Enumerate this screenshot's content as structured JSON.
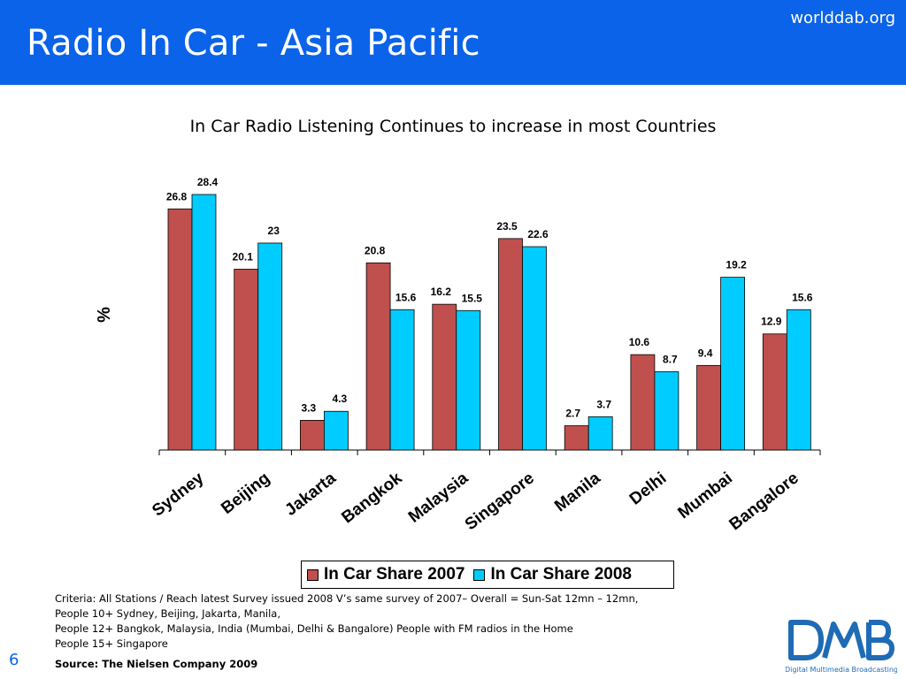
{
  "header": {
    "title": "Radio In Car - Asia Pacific",
    "site": "worlddab.org"
  },
  "colors": {
    "header_bg": "#0a63e8",
    "series_2007": "#c0504d",
    "series_2008": "#00ccff"
  },
  "chart_data": {
    "type": "bar",
    "title": "In Car Radio Listening Continues to increase in most Countries",
    "ylabel": "%",
    "xlabel": "",
    "ylim": [
      0,
      28.4
    ],
    "grid": false,
    "legend_position": "bottom",
    "categories": [
      "Sydney",
      "Beijing",
      "Jakarta",
      "Bangkok",
      "Malaysia",
      "Singapore",
      "Manila",
      "Delhi",
      "Mumbai",
      "Bangalore"
    ],
    "series": [
      {
        "name": "In Car Share 2007",
        "color": "#c0504d",
        "values": [
          26.8,
          20.1,
          3.3,
          20.8,
          16.2,
          23.5,
          2.7,
          10.6,
          9.4,
          12.9
        ],
        "labels": [
          "26.8",
          "20.1",
          "3.3",
          "20.8",
          "16.2",
          "23.5",
          "2.7",
          "10.6",
          "9.4",
          "12.9"
        ]
      },
      {
        "name": "In Car Share 2008",
        "color": "#00ccff",
        "values": [
          28.4,
          23,
          4.3,
          15.6,
          15.5,
          22.6,
          3.7,
          8.7,
          19.2,
          15.6
        ],
        "labels": [
          "28.4",
          "23",
          "4.3",
          "15.6",
          "15.5",
          "22.6",
          "3.7",
          "8.7",
          "19.2",
          "15.6"
        ]
      }
    ]
  },
  "footer": {
    "criteria": [
      "Criteria: All Stations / Reach latest Survey issued 2008 V’s same survey of 2007– Overall = Sun-Sat 12mn – 12mn,",
      "People 10+ Sydney, Beijing, Jakarta, Manila,",
      "People 12+ Bangkok, Malaysia, India (Mumbai, Delhi & Bangalore) People with FM radios in the Home",
      "People 15+ Singapore"
    ],
    "source": "Source: The Nielsen Company 2009",
    "page_number": "6"
  },
  "logo": {
    "text": "Digital Multimedia Broadcasting",
    "icon": "dmb-logo-icon",
    "color": "#1f6bb5"
  }
}
